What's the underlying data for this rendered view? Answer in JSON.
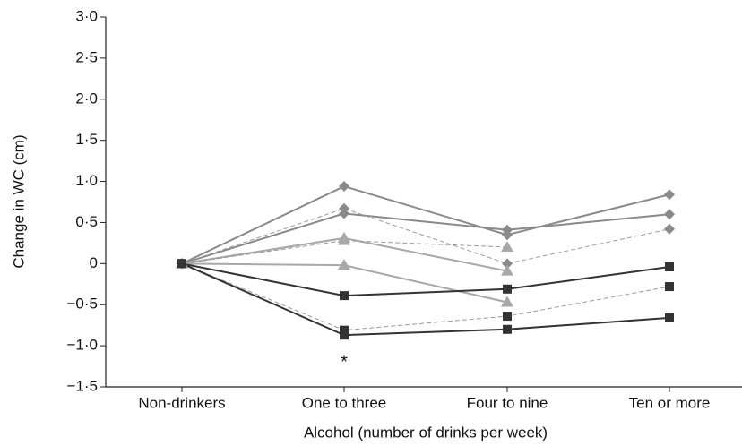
{
  "chart_data": {
    "type": "line",
    "y_label": "Change in WC (cm)",
    "x_label": "Alcohol (number of drinks per week)",
    "categories": [
      "Non-drinkers",
      "One to three",
      "Four to nine",
      "Ten or more"
    ],
    "ylim": [
      -1.5,
      3.0
    ],
    "yticks": [
      {
        "value": -1.5,
        "label": "−1·5"
      },
      {
        "value": -1.0,
        "label": "−1·0"
      },
      {
        "value": -0.5,
        "label": "−0·5"
      },
      0,
      {
        "value": 0.5,
        "label": "0·5"
      },
      {
        "value": 1.0,
        "label": "1·0"
      },
      {
        "value": 1.5,
        "label": "1·5"
      },
      {
        "value": 2.0,
        "label": "2·0"
      },
      {
        "value": 2.5,
        "label": "2·5"
      },
      {
        "value": 3.0,
        "label": "3·0"
      }
    ],
    "annotation": "*",
    "series": [
      {
        "color": "#8a8a8a",
        "marker": "diamond",
        "dashed": false,
        "values": [
          0,
          0.94,
          0.35,
          0.84
        ]
      },
      {
        "color": "#8a8a8a",
        "marker": "diamond",
        "dashed": false,
        "values": [
          0,
          0.61,
          0.41,
          0.6
        ]
      },
      {
        "color": "#8a8a8a",
        "marker": "diamond",
        "dashed": true,
        "values": [
          0,
          0.67,
          0.0,
          0.42
        ]
      },
      {
        "color": "#a8a8a8",
        "marker": "triangle",
        "dashed": false,
        "values": [
          0,
          0.31,
          -0.09,
          null
        ]
      },
      {
        "color": "#a8a8a8",
        "marker": "triangle",
        "dashed": true,
        "values": [
          0,
          0.28,
          0.2,
          null
        ]
      },
      {
        "color": "#a8a8a8",
        "marker": "triangle",
        "dashed": false,
        "values": [
          0,
          -0.02,
          -0.47,
          null
        ]
      },
      {
        "color": "#333333",
        "marker": "square",
        "dashed": false,
        "values": [
          0,
          -0.39,
          -0.31,
          -0.04
        ]
      },
      {
        "color": "#333333",
        "marker": "square",
        "dashed": true,
        "values": [
          0,
          -0.81,
          -0.64,
          -0.28
        ]
      },
      {
        "color": "#333333",
        "marker": "square",
        "dashed": false,
        "values": [
          0,
          -0.87,
          -0.8,
          -0.66
        ]
      }
    ]
  }
}
